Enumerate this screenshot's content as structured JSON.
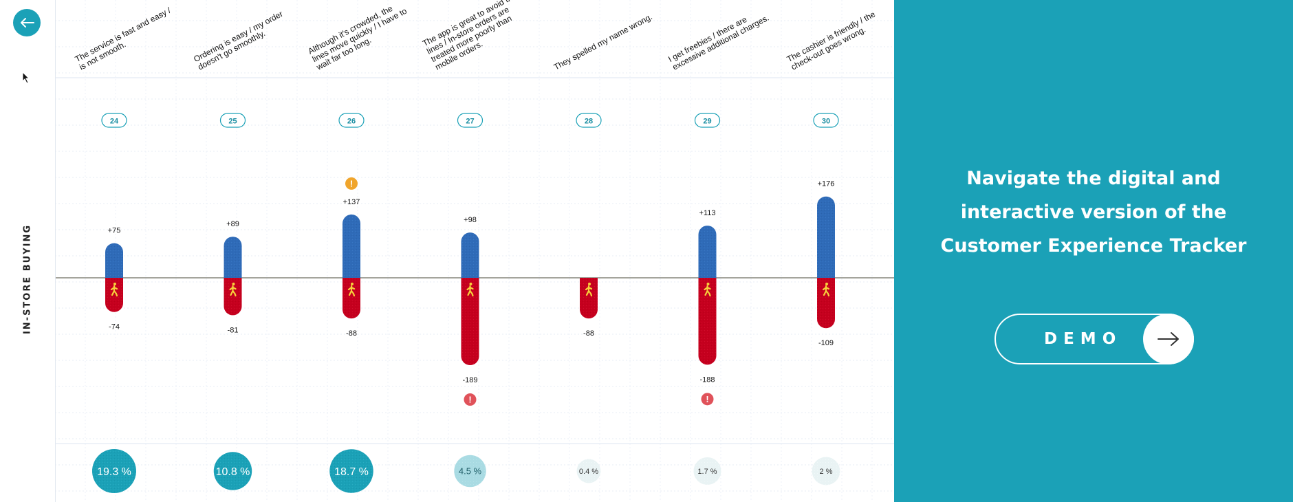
{
  "section_label": "IN-STORE BUYING",
  "colors": {
    "accent": "#1ba1b7",
    "positive_bar": "#2f6bb8",
    "negative_bar": "#c5001e",
    "warning": "#f0a52c",
    "alert": "#e0525a"
  },
  "icons": {
    "back": "arrow-left-icon",
    "demo": "arrow-right-icon",
    "bar": "walking-person-icon",
    "warning": "exclamation-icon"
  },
  "chart_data": {
    "type": "bar",
    "categories": [
      "24",
      "25",
      "26",
      "27",
      "28",
      "29",
      "30"
    ],
    "statements": [
      [
        "The service is fast and easy /",
        "is not smooth."
      ],
      [
        "Ordering is easy / my order",
        "doesn't go smoothly."
      ],
      [
        "Although it's crowded, the",
        "lines move quickly / I have to",
        "wait far too long."
      ],
      [
        "The app is great to avoid the",
        "lines / In-store orders are",
        "treated more poorly than",
        "mobile orders."
      ],
      [
        "They spelled my name wrong."
      ],
      [
        "I get freebies / there are",
        "excessive additional charges."
      ],
      [
        "The cashier is friendly / the",
        "check-out goes wrong."
      ]
    ],
    "series": [
      {
        "values": [
          75,
          89,
          137,
          98,
          null,
          113,
          176
        ],
        "labels": [
          "+75",
          "+89",
          "+137",
          "+98",
          "",
          "+113",
          "+176"
        ]
      },
      {
        "values": [
          -74,
          -81,
          -88,
          -189,
          -88,
          -188,
          -109
        ],
        "labels": [
          "-74",
          "-81",
          "-88",
          "-189",
          "-88",
          "-188",
          "-109"
        ]
      }
    ],
    "shares": [
      "19.3 %",
      "10.8 %",
      "18.7 %",
      "4.5 %",
      "0.4 %",
      "1.7 %",
      "2 %"
    ],
    "share_values": [
      19.3,
      10.8,
      18.7,
      4.5,
      0.4,
      1.7,
      2
    ],
    "flags": [
      "",
      "",
      "warning-top",
      "alert-bottom",
      "",
      "alert-bottom",
      ""
    ],
    "flag_glyph": "!"
  },
  "cta": {
    "lines": [
      "Navigate the digital and",
      "interactive version of the",
      "Customer Experience Tracker"
    ],
    "button_label": "DEMO"
  }
}
